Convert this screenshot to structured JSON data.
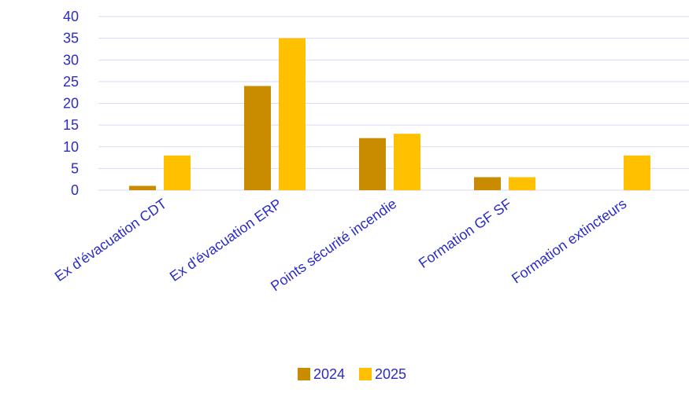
{
  "chart_data": {
    "type": "bar",
    "categories": [
      "Ex d'évacuation CDT",
      "Ex d'évacuation ERP",
      "Points sécurité incendie",
      "Formation GF SF",
      "Formation extincteurs"
    ],
    "series": [
      {
        "name": "2024",
        "color": "#c98b00",
        "values": [
          1,
          24,
          12,
          3,
          0
        ]
      },
      {
        "name": "2025",
        "color": "#ffc000",
        "values": [
          8,
          35,
          13,
          3,
          8
        ]
      }
    ],
    "ylim": [
      0,
      40
    ],
    "yticks": [
      0,
      5,
      10,
      15,
      20,
      25,
      30,
      35,
      40
    ],
    "grid": true,
    "legend_position": "bottom-center",
    "colors": {
      "axis_text": "#2b2bc8",
      "grid": "#d9d9f0"
    }
  }
}
